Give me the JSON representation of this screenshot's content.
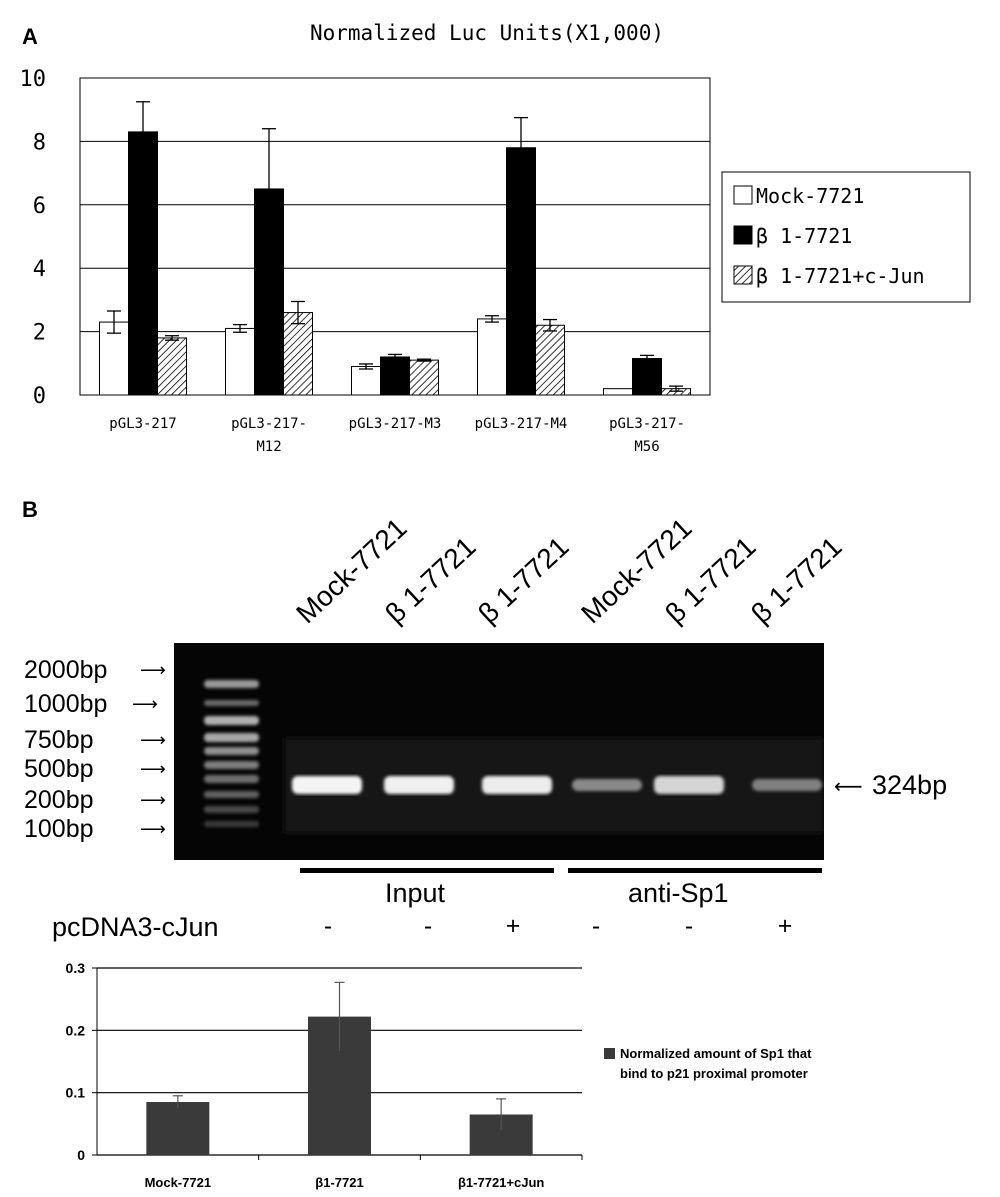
{
  "panel_a_letter": "A",
  "panel_b_letter": "B",
  "chart_data": [
    {
      "type": "bar",
      "title": "Normalized Luc Units(X1,000)",
      "categories": [
        "pGL3-217",
        "pGL3-217-M12",
        "pGL3-217-M3",
        "pGL3-217-M4",
        "pGL3-217-M56"
      ],
      "category_lines": [
        [
          "pGL3-217"
        ],
        [
          "pGL3-217-",
          "M12"
        ],
        [
          "pGL3-217-M3"
        ],
        [
          "pGL3-217-M4"
        ],
        [
          "pGL3-217-",
          "M56"
        ]
      ],
      "series": [
        {
          "name": "Mock-7721",
          "values": [
            2.3,
            2.1,
            0.9,
            2.4,
            0.2
          ],
          "errors": [
            0.35,
            0.12,
            0.08,
            0.1,
            0.0
          ],
          "fill": "#ffffff"
        },
        {
          "name": "β 1-7721",
          "values": [
            8.3,
            6.5,
            1.2,
            7.8,
            1.15
          ],
          "errors": [
            0.95,
            1.9,
            0.08,
            0.95,
            0.1
          ],
          "fill": "#000000"
        },
        {
          "name": "β 1-7721+c-Jun",
          "values": [
            1.8,
            2.6,
            1.1,
            2.2,
            0.2
          ],
          "errors": [
            0.07,
            0.35,
            0.03,
            0.18,
            0.08
          ],
          "fill": "hatch"
        }
      ],
      "yticks": [
        "0",
        "2",
        "4",
        "6",
        "8",
        "10"
      ],
      "ylim": [
        0,
        10
      ],
      "grid": true,
      "legend": "right"
    },
    {
      "type": "bar",
      "categories": [
        "Mock-7721",
        "β1-7721",
        "β1-7721+cJun"
      ],
      "series": [
        {
          "name": "Normalized amount of Sp1 that bind to p21 proximal promoter",
          "values": [
            0.085,
            0.222,
            0.065
          ],
          "errors": [
            0.01,
            0.055,
            0.025
          ]
        }
      ],
      "legend_lines": [
        "Normalized amount of Sp1 that",
        "bind to p21 proximal promoter"
      ],
      "yticks": [
        "0",
        "0.1",
        "0.2",
        "0.3"
      ],
      "ylim": [
        0,
        0.3
      ],
      "grid": true,
      "bar_color": "#3a3a3a",
      "legend": "right"
    }
  ],
  "gel": {
    "lane_labels": [
      "Mock-7721",
      "β 1-7721",
      "β 1-7721",
      "Mock-7721",
      "β 1-7721",
      "β 1-7721"
    ],
    "markers": [
      "2000bp",
      "1000bp",
      "750bp",
      "500bp",
      "200bp",
      "100bp"
    ],
    "band_label": "324bp",
    "group_labels": [
      "Input",
      "anti-Sp1"
    ],
    "row_label": "pcDNA3-cJun",
    "signs": [
      "-",
      "-",
      "+",
      "-",
      "-",
      "+"
    ]
  }
}
